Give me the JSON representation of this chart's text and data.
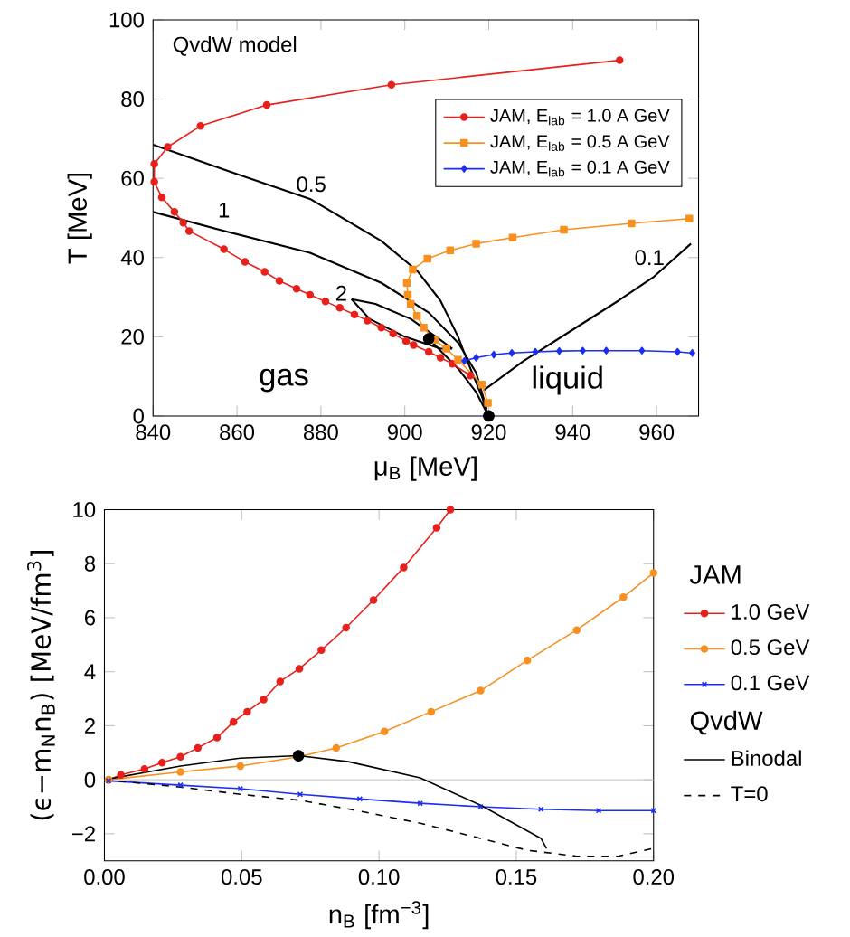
{
  "chart_data": [
    {
      "type": "line",
      "xlabel": "μ$_{B}$ [MeV]",
      "ylabel": "T [MeV]",
      "xlim": [
        840,
        970
      ],
      "ylim": [
        0,
        100
      ],
      "xticks": [
        840,
        860,
        880,
        900,
        920,
        940,
        960
      ],
      "yticks": [
        0,
        20,
        40,
        60,
        80,
        100
      ],
      "legend": "top right",
      "annotations": [
        "QvdW model",
        "0.5",
        "1",
        "2",
        "0.1",
        "gas",
        "liquid"
      ],
      "series": [
        {
          "color": "#000000",
          "x": [
            840,
            860.5,
            877.4,
            894.4,
            902.9,
            908.5,
            912.7,
            914.9,
            918.4,
            919.8
          ],
          "values": [
            68.5,
            60.9,
            54.8,
            44.2,
            36.7,
            29.1,
            20,
            13.9,
            4.8,
            0.3
          ]
        },
        {
          "color": "#000000",
          "x": [
            840,
            857.7,
            877.4,
            894.4,
            905.7,
            912.7,
            917,
            919.5
          ],
          "values": [
            51.5,
            46.5,
            41.2,
            33.6,
            26.1,
            18.5,
            10.9,
            1.8
          ]
        },
        {
          "color": "#000000",
          "x": [
            887.3,
            893,
            901.4,
            908.5,
            911.3
          ],
          "values": [
            29.5,
            28.3,
            24.5,
            19.2,
            17
          ]
        },
        {
          "color": "#000000",
          "x": [
            887.3,
            891.6,
            900,
            908.5,
            911.3
          ],
          "values": [
            29.5,
            24.5,
            20,
            17,
            17
          ]
        },
        {
          "color": "#000000",
          "x": [
            918.7,
            928.3,
            939.6,
            950.9,
            959.4,
            968.2
          ],
          "values": [
            6.4,
            13.9,
            21.5,
            29.1,
            35.2,
            43.5
          ]
        },
        {
          "color": "#000000",
          "x": [
            905.7,
            912.7,
            917,
            919.8
          ],
          "values": [
            19.5,
            12,
            6,
            0.3
          ]
        },
        {
          "name": "JAM, E$_{lab}$ = 1.0 A GeV",
          "marker": "circle",
          "color": "#e8201c",
          "x": [
            951.2,
            896.8,
            867.1,
            851.3,
            843.5,
            840.3,
            840.3,
            842.1,
            845.1,
            847.2,
            848.6,
            856.9,
            861.9,
            866.6,
            870.1,
            874.2,
            877.4,
            881.1,
            884.5,
            888,
            891.1,
            894.4,
            897.2,
            900.3,
            902.1,
            905.7,
            908.5,
            911.3,
            915.6
          ],
          "values": [
            89.8,
            83.6,
            78.5,
            73.2,
            67.9,
            63.6,
            59.1,
            55.2,
            51.5,
            48.8,
            46.7,
            42.1,
            38.9,
            36.4,
            34.1,
            32.1,
            30.6,
            28.9,
            27.3,
            25.6,
            24.1,
            22.3,
            20.8,
            18.9,
            17.9,
            16.2,
            14.7,
            13.2,
            10.2
          ]
        },
        {
          "name": "JAM, E$_{lab}$ = 0.5 A GeV",
          "marker": "square",
          "color": "#f7901e",
          "x": [
            967.8,
            954,
            937.9,
            925.7,
            917,
            910.8,
            905.4,
            901.9,
            900.5,
            900.7,
            901.4,
            902.9,
            904.5,
            907.1,
            909.9,
            912.7,
            918.4,
            919.8
          ],
          "values": [
            49.8,
            48.6,
            47,
            45,
            43.5,
            41.8,
            39.7,
            37,
            33.6,
            30.6,
            28.3,
            25.3,
            22.3,
            19.2,
            17,
            14.2,
            7.9,
            3.3
          ]
        },
        {
          "name": "JAM, E$_{lab}$ = 0.1 A GeV",
          "marker": "diamond",
          "color": "#1c2ef0",
          "x": [
            914.2,
            917,
            921.2,
            925.5,
            931.1,
            936.8,
            942.4,
            948,
            956.5,
            965,
            968.5
          ],
          "values": [
            13.9,
            14.7,
            15.5,
            15.9,
            16.2,
            16.4,
            16.5,
            16.5,
            16.5,
            16.2,
            15.9
          ]
        },
        {
          "type": "scatter",
          "marker": "circle",
          "color": "#000000",
          "x": [
            905.7,
            920
          ],
          "values": [
            19.5,
            0
          ]
        }
      ]
    },
    {
      "type": "line",
      "xlabel": "n$_{B}$ [fm$^{−3}$]",
      "ylabel": "(ϵ−m$_{N}$n$_{B}$) [MeV/fm$^{3}$]",
      "xlim": [
        0,
        0.2
      ],
      "ylim": [
        -3,
        10
      ],
      "xticks": [
        {
          "value": 0,
          "label": "0.00"
        },
        {
          "value": 0.05,
          "label": "0.05"
        },
        {
          "value": 0.1,
          "label": "0.10"
        },
        {
          "value": 0.15,
          "label": "0.15"
        },
        {
          "value": 0.2,
          "label": "0.20"
        }
      ],
      "yticks": [
        {
          "value": -2,
          "label": "−2"
        },
        0,
        2,
        4,
        6,
        8,
        10
      ],
      "legend": "right",
      "legend_title": "JAM",
      "annotations": [
        "QvdW"
      ],
      "ref_lines": [
        {
          "axis": "y",
          "value": 0,
          "color": "#cccccc"
        }
      ],
      "series": [
        {
          "name": "1.0 GeV",
          "marker": "circle",
          "color": "#e8201c",
          "x": [
            0.0015,
            0.006,
            0.0146,
            0.021,
            0.0277,
            0.034,
            0.041,
            0.047,
            0.052,
            0.058,
            0.064,
            0.071,
            0.079,
            0.088,
            0.098,
            0.109,
            0.121,
            0.126
          ],
          "values": [
            0,
            0.18,
            0.4,
            0.63,
            0.85,
            1.18,
            1.56,
            2.14,
            2.52,
            2.97,
            3.64,
            4.11,
            4.8,
            5.63,
            6.65,
            7.86,
            9.33,
            10
          ]
        },
        {
          "name": "0.5 GeV",
          "marker": "circle",
          "color": "#f7901e",
          "x": [
            0.0015,
            0.0277,
            0.0495,
            0.0707,
            0.0844,
            0.102,
            0.119,
            0.137,
            0.154,
            0.172,
            0.189,
            0.2
          ],
          "values": [
            0,
            0.29,
            0.51,
            0.85,
            1.18,
            1.79,
            2.52,
            3.3,
            4.42,
            5.54,
            6.76,
            7.66
          ]
        },
        {
          "name": "0.1 GeV",
          "marker": "cross",
          "color": "#1c2ef0",
          "x": [
            0.0015,
            0.0277,
            0.0495,
            0.0713,
            0.093,
            0.115,
            0.137,
            0.159,
            0.18,
            0.2
          ],
          "values": [
            -0.04,
            -0.2,
            -0.33,
            -0.54,
            -0.71,
            -0.87,
            -1,
            -1.09,
            -1.14,
            -1.14
          ]
        },
        {
          "name": "Binodal",
          "color": "#000000",
          "x": [
            0,
            0.0277,
            0.0495,
            0.0707,
            0.0888,
            0.115,
            0.137,
            0.159,
            0.161
          ],
          "values": [
            0,
            0.51,
            0.8,
            0.89,
            0.67,
            0.07,
            -0.94,
            -2.17,
            -2.54
          ]
        },
        {
          "name": "T=0",
          "line_style": "dashed",
          "color": "#000000",
          "x": [
            0,
            0.0277,
            0.0495,
            0.0713,
            0.093,
            0.115,
            0.137,
            0.154,
            0.172,
            0.187,
            0.2
          ],
          "values": [
            0,
            -0.27,
            -0.54,
            -0.76,
            -1.16,
            -1.61,
            -2.17,
            -2.61,
            -2.83,
            -2.83,
            -2.54
          ]
        },
        {
          "type": "scatter",
          "marker": "circle",
          "color": "#000000",
          "x": [
            0.0707
          ],
          "values": [
            0.89
          ]
        }
      ]
    }
  ]
}
